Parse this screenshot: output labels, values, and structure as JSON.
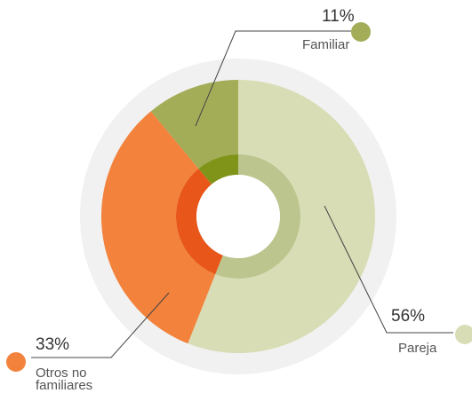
{
  "chart_data": {
    "type": "pie",
    "categories": [
      "Pareja",
      "Otros no familiares",
      "Familiar"
    ],
    "values": [
      56,
      33,
      11
    ],
    "value_labels": [
      "56%",
      "33%",
      "11%"
    ],
    "colors": [
      "#d8ddb5",
      "#f2823c",
      "#a3ad58"
    ],
    "inner_colors": [
      "#bcc58e",
      "#e8561a",
      "#7f9418"
    ]
  }
}
